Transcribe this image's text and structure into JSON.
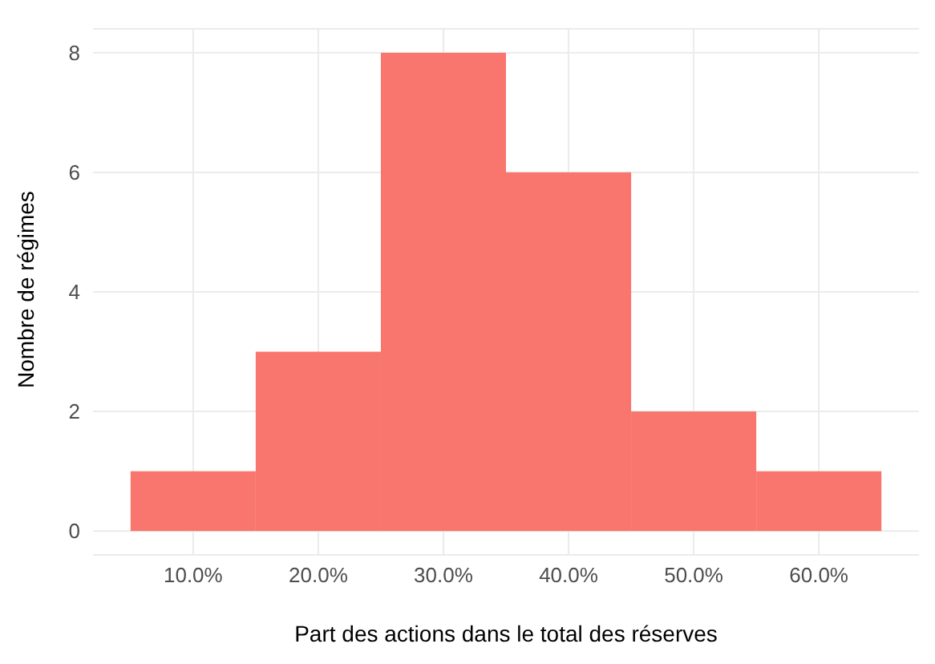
{
  "chart_data": {
    "type": "histogram",
    "xlabel": "Part des actions dans le total des réserves",
    "ylabel": "Nombre de régimes",
    "bins": [
      5,
      15,
      25,
      35,
      45,
      55,
      65
    ],
    "values": [
      1,
      3,
      8,
      6,
      2,
      1
    ],
    "color": "#f8766d",
    "xlim": [
      2,
      68
    ],
    "xticks": [
      {
        "value": 10,
        "label": "10.0%"
      },
      {
        "value": 20,
        "label": "20.0%"
      },
      {
        "value": 30,
        "label": "30.0%"
      },
      {
        "value": 40,
        "label": "40.0%"
      },
      {
        "value": 50,
        "label": "50.0%"
      },
      {
        "value": 60,
        "label": "60.0%"
      }
    ],
    "ylim": [
      -0.4,
      8.4
    ],
    "yticks": [
      0,
      2,
      4,
      6,
      8
    ],
    "grid": true
  }
}
